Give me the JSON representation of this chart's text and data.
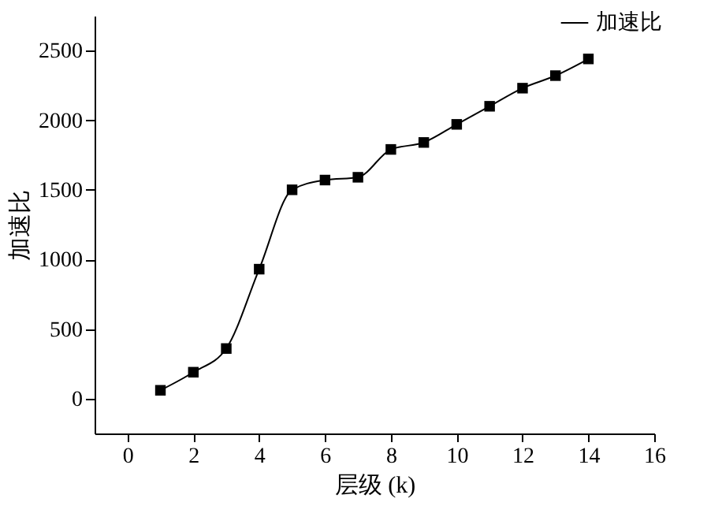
{
  "chart_data": {
    "type": "line",
    "xlabel": "层级 (k)",
    "ylabel": "加速比",
    "x": [
      1,
      2,
      3,
      4,
      5,
      6,
      7,
      8,
      9,
      10,
      11,
      12,
      13,
      14
    ],
    "series": [
      {
        "name": "加速比",
        "color": "#000000",
        "values": [
          60,
          190,
          360,
          930,
          1500,
          1570,
          1590,
          1790,
          1840,
          1970,
          2100,
          2230,
          2320,
          2440
        ]
      }
    ],
    "xlim": [
      -1,
      16
    ],
    "xticks": [
      0,
      2,
      4,
      6,
      8,
      10,
      12,
      14,
      16
    ],
    "ylim": [
      -250,
      2750
    ],
    "yticks": [
      0,
      500,
      1000,
      1500,
      2000,
      2500
    ],
    "grid": false,
    "legend": "top right",
    "marker": "square",
    "line_style": "solid"
  }
}
